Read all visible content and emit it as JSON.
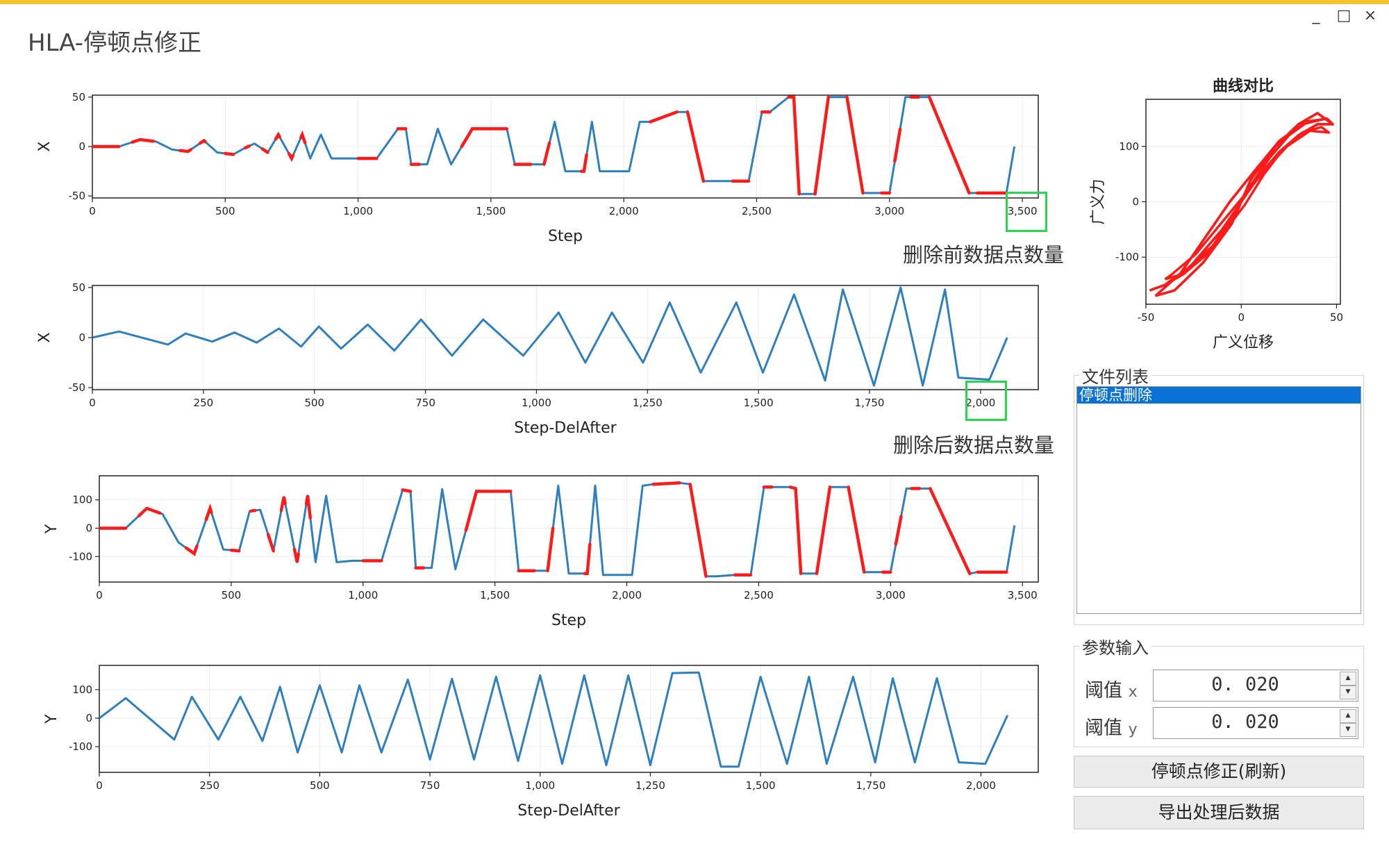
{
  "window": {
    "title": "HLA-停顿点修正",
    "controls": [
      "_",
      "□",
      "×"
    ],
    "accent_color": "#f6c12c"
  },
  "colors": {
    "series": "#2e7fbf",
    "highlight": "#ff1a1a",
    "callout_box": "#27d94a",
    "selection": "#0a72d6"
  },
  "callouts": {
    "before": "删除前数据点数量",
    "after": "删除后数据点数量"
  },
  "chart_data": [
    {
      "type": "line",
      "xlabel": "Step",
      "ylabel": "X",
      "xlim": [
        0,
        3560
      ],
      "ylim": [
        -52,
        52
      ],
      "xticks": [
        0,
        500,
        1000,
        1500,
        2000,
        2500,
        3000,
        3500
      ],
      "xticklabels": [
        "0",
        "500",
        "1,000",
        "1,500",
        "2,000",
        "2,500",
        "3,000",
        "3,500"
      ],
      "yticks": [
        -50,
        0,
        50
      ],
      "yticklabels": [
        "-50",
        "0",
        "50"
      ],
      "series": [
        {
          "color": "#2e7fbf",
          "x": [
            0,
            100,
            180,
            240,
            300,
            360,
            420,
            470,
            530,
            570,
            610,
            660,
            700,
            750,
            790,
            820,
            860,
            900,
            960,
            1000,
            1070,
            1150,
            1180,
            1200,
            1260,
            1300,
            1350,
            1430,
            1560,
            1590,
            1650,
            1700,
            1740,
            1780,
            1850,
            1880,
            1910,
            1940,
            2020,
            2060,
            2100,
            2200,
            2240,
            2300,
            2340,
            2410,
            2470,
            2520,
            2550,
            2620,
            2640,
            2660,
            2720,
            2770,
            2840,
            2900,
            3000,
            3060,
            3110,
            3150,
            3300,
            3330,
            3440,
            3470
          ],
          "y": [
            0,
            0,
            7,
            5,
            -3,
            -5,
            6,
            -6,
            -8,
            -2,
            3,
            -6,
            12,
            -12,
            12,
            -12,
            12,
            -12,
            -12,
            -12,
            -12,
            18,
            18,
            -18,
            -18,
            18,
            -18,
            18,
            18,
            -18,
            -18,
            -18,
            25,
            -25,
            -25,
            25,
            -25,
            -25,
            -25,
            25,
            25,
            35,
            35,
            -35,
            -35,
            -35,
            -35,
            35,
            35,
            50,
            50,
            -48,
            -48,
            50,
            50,
            -47,
            -47,
            50,
            50,
            50,
            -47,
            -47,
            -47,
            0
          ]
        }
      ],
      "highlight_segments": [
        [
          0,
          100
        ],
        [
          150,
          230
        ],
        [
          330,
          370
        ],
        [
          405,
          425
        ],
        [
          500,
          530
        ],
        [
          575,
          590
        ],
        [
          640,
          660
        ],
        [
          690,
          705
        ],
        [
          740,
          755
        ],
        [
          785,
          800
        ],
        [
          1000,
          1070
        ],
        [
          1150,
          1180
        ],
        [
          1200,
          1230
        ],
        [
          1390,
          1560
        ],
        [
          1590,
          1650
        ],
        [
          1700,
          1720
        ],
        [
          1840,
          1860
        ],
        [
          2100,
          2200
        ],
        [
          2240,
          2300
        ],
        [
          2410,
          2470
        ],
        [
          2520,
          2550
        ],
        [
          2620,
          2660
        ],
        [
          2720,
          2770
        ],
        [
          2840,
          2900
        ],
        [
          2970,
          3000
        ],
        [
          3020,
          3040
        ],
        [
          3080,
          3110
        ],
        [
          3150,
          3300
        ],
        [
          3330,
          3440
        ]
      ]
    },
    {
      "type": "line",
      "xlabel": "Step-DelAfter",
      "ylabel": "X",
      "xlim": [
        0,
        2130
      ],
      "ylim": [
        -52,
        52
      ],
      "xticks": [
        0,
        250,
        500,
        750,
        1000,
        1250,
        1500,
        1750,
        2000
      ],
      "xticklabels": [
        "0",
        "250",
        "500",
        "750",
        "1,000",
        "1,250",
        "1,500",
        "1,750",
        "2,000"
      ],
      "yticks": [
        -50,
        0,
        50
      ],
      "yticklabels": [
        "-50",
        "0",
        "50"
      ],
      "series": [
        {
          "color": "#2e7fbf",
          "x": [
            0,
            60,
            170,
            210,
            270,
            320,
            370,
            420,
            470,
            510,
            560,
            620,
            680,
            740,
            810,
            880,
            970,
            1050,
            1110,
            1170,
            1240,
            1300,
            1370,
            1450,
            1510,
            1580,
            1650,
            1690,
            1760,
            1820,
            1870,
            1920,
            1950,
            2020,
            2060
          ],
          "y": [
            0,
            6,
            -7,
            4,
            -4,
            5,
            -5,
            9,
            -9,
            11,
            -11,
            13,
            -13,
            18,
            -18,
            18,
            -18,
            25,
            -25,
            25,
            -25,
            35,
            -35,
            35,
            -35,
            43,
            -43,
            48,
            -48,
            50,
            -48,
            48,
            -40,
            -42,
            0
          ]
        }
      ],
      "highlight_segments": []
    },
    {
      "type": "line",
      "xlabel": "Step",
      "ylabel": "Y",
      "xlim": [
        0,
        3560
      ],
      "ylim": [
        -190,
        185
      ],
      "xticks": [
        0,
        500,
        1000,
        1500,
        2000,
        2500,
        3000,
        3500
      ],
      "xticklabels": [
        "0",
        "500",
        "1,000",
        "1,500",
        "2,000",
        "2,500",
        "3,000",
        "3,500"
      ],
      "yticks": [
        -100,
        0,
        100
      ],
      "yticklabels": [
        "-100",
        "0",
        "100"
      ],
      "series": [
        {
          "color": "#2e7fbf",
          "x": [
            0,
            100,
            180,
            240,
            300,
            360,
            420,
            470,
            530,
            570,
            610,
            660,
            700,
            750,
            790,
            820,
            860,
            900,
            960,
            1000,
            1070,
            1150,
            1180,
            1200,
            1260,
            1300,
            1350,
            1430,
            1560,
            1590,
            1650,
            1700,
            1740,
            1780,
            1850,
            1880,
            1910,
            1940,
            2020,
            2060,
            2100,
            2200,
            2240,
            2300,
            2340,
            2410,
            2470,
            2520,
            2550,
            2620,
            2640,
            2660,
            2720,
            2770,
            2840,
            2900,
            3000,
            3060,
            3110,
            3150,
            3300,
            3330,
            3440,
            3470
          ],
          "y": [
            0,
            0,
            70,
            50,
            -50,
            -90,
            70,
            -75,
            -80,
            60,
            65,
            -80,
            110,
            -120,
            115,
            -120,
            115,
            -120,
            -115,
            -115,
            -115,
            135,
            130,
            -140,
            -140,
            138,
            -145,
            130,
            130,
            -150,
            -150,
            -150,
            150,
            -160,
            -160,
            150,
            -165,
            -165,
            -165,
            150,
            155,
            160,
            155,
            -170,
            -170,
            -165,
            -165,
            145,
            145,
            145,
            140,
            -160,
            -160,
            145,
            145,
            -155,
            -155,
            140,
            140,
            140,
            -160,
            -155,
            -155,
            10
          ]
        }
      ],
      "highlight_segments": [
        [
          0,
          100
        ],
        [
          150,
          230
        ],
        [
          330,
          370
        ],
        [
          405,
          425
        ],
        [
          500,
          530
        ],
        [
          575,
          590
        ],
        [
          640,
          660
        ],
        [
          690,
          705
        ],
        [
          740,
          755
        ],
        [
          785,
          800
        ],
        [
          1000,
          1070
        ],
        [
          1150,
          1180
        ],
        [
          1200,
          1230
        ],
        [
          1390,
          1560
        ],
        [
          1590,
          1650
        ],
        [
          1700,
          1720
        ],
        [
          1840,
          1860
        ],
        [
          2100,
          2200
        ],
        [
          2240,
          2300
        ],
        [
          2410,
          2470
        ],
        [
          2520,
          2550
        ],
        [
          2620,
          2660
        ],
        [
          2720,
          2770
        ],
        [
          2840,
          2900
        ],
        [
          2970,
          3000
        ],
        [
          3020,
          3040
        ],
        [
          3080,
          3110
        ],
        [
          3150,
          3300
        ],
        [
          3330,
          3440
        ]
      ]
    },
    {
      "type": "line",
      "xlabel": "Step-DelAfter",
      "ylabel": "Y",
      "xlim": [
        0,
        2130
      ],
      "ylim": [
        -190,
        185
      ],
      "xticks": [
        0,
        250,
        500,
        750,
        1000,
        1250,
        1500,
        1750,
        2000
      ],
      "xticklabels": [
        "0",
        "250",
        "500",
        "750",
        "1,000",
        "1,250",
        "1,500",
        "1,750",
        "2,000"
      ],
      "yticks": [
        -100,
        0,
        100
      ],
      "yticklabels": [
        "-100",
        "0",
        "100"
      ],
      "series": [
        {
          "color": "#2e7fbf",
          "x": [
            0,
            60,
            170,
            210,
            270,
            320,
            370,
            410,
            450,
            500,
            550,
            590,
            640,
            700,
            750,
            800,
            850,
            900,
            950,
            1000,
            1050,
            1100,
            1150,
            1200,
            1250,
            1300,
            1360,
            1410,
            1450,
            1500,
            1560,
            1610,
            1650,
            1710,
            1760,
            1800,
            1850,
            1900,
            1950,
            2010,
            2060
          ],
          "y": [
            0,
            70,
            -75,
            75,
            -75,
            75,
            -80,
            110,
            -120,
            115,
            -120,
            115,
            -120,
            135,
            -145,
            138,
            -145,
            145,
            -150,
            150,
            -160,
            150,
            -165,
            150,
            -165,
            158,
            160,
            -170,
            -170,
            145,
            -160,
            145,
            -160,
            145,
            -155,
            140,
            -155,
            140,
            -155,
            -160,
            10
          ]
        }
      ],
      "highlight_segments": []
    },
    {
      "type": "line",
      "title": "曲线对比",
      "xlabel": "广义位移",
      "ylabel": "广义力",
      "xlim": [
        -50,
        52
      ],
      "ylim": [
        -185,
        185
      ],
      "xticks": [
        -50,
        0,
        50
      ],
      "xticklabels": [
        "-50",
        "0",
        "50"
      ],
      "yticks": [
        -100,
        0,
        100
      ],
      "yticklabels": [
        "-100",
        "0",
        "100"
      ],
      "series": [
        {
          "color": "#1a1a1a",
          "x": [
            -48,
            -40,
            -28,
            -15,
            -5,
            5,
            15,
            25,
            35,
            45,
            48,
            40,
            30,
            20,
            10,
            0,
            -10,
            -20,
            -30,
            -40,
            -48
          ],
          "y": [
            -160,
            -150,
            -120,
            -80,
            -30,
            30,
            80,
            120,
            145,
            150,
            140,
            140,
            120,
            90,
            50,
            0,
            -50,
            -90,
            -130,
            -150,
            -160
          ]
        },
        {
          "color": "#1a1a1a",
          "x": [
            -45,
            -35,
            -20,
            -5,
            5,
            18,
            30,
            40,
            48,
            44,
            32,
            20,
            8,
            -6,
            -20,
            -32,
            -45
          ],
          "y": [
            -170,
            -160,
            -110,
            -40,
            40,
            100,
            140,
            160,
            140,
            150,
            140,
            110,
            60,
            0,
            -70,
            -130,
            -170
          ]
        },
        {
          "color": "#ff1a1a",
          "x": [
            -48,
            -40,
            -28,
            -15,
            -5,
            5,
            15,
            25,
            35,
            45,
            48,
            40,
            30,
            20,
            10,
            0,
            -10,
            -20,
            -30,
            -40,
            -48
          ],
          "y": [
            -160,
            -150,
            -120,
            -80,
            -30,
            30,
            80,
            120,
            145,
            150,
            140,
            140,
            120,
            90,
            50,
            0,
            -50,
            -90,
            -130,
            -150,
            -160
          ]
        },
        {
          "color": "#ff1a1a",
          "x": [
            -45,
            -35,
            -20,
            -5,
            5,
            18,
            30,
            40,
            48,
            44,
            32,
            20,
            8,
            -6,
            -20,
            -32,
            -45
          ],
          "y": [
            -170,
            -160,
            -110,
            -40,
            40,
            100,
            140,
            160,
            140,
            150,
            140,
            110,
            60,
            0,
            -70,
            -130,
            -170
          ]
        },
        {
          "color": "#ff1a1a",
          "x": [
            -40,
            -30,
            -18,
            -8,
            2,
            12,
            22,
            32,
            42,
            46,
            36,
            24,
            12,
            0,
            -12,
            -24,
            -36,
            -40
          ],
          "y": [
            -140,
            -130,
            -95,
            -50,
            -5,
            50,
            95,
            125,
            135,
            125,
            128,
            100,
            55,
            5,
            -45,
            -95,
            -130,
            -140
          ]
        }
      ]
    }
  ],
  "file_list": {
    "title": "文件列表",
    "items": [
      "停顿点删除"
    ]
  },
  "params": {
    "title": "参数输入",
    "thresh_x": {
      "label": "阈值",
      "suffix": "x",
      "value": "0. 020"
    },
    "thresh_y": {
      "label": "阈值",
      "suffix": "y",
      "value": "0. 020"
    }
  },
  "buttons": {
    "correct": "停顿点修正(刷新)",
    "export": "导出处理后数据"
  }
}
